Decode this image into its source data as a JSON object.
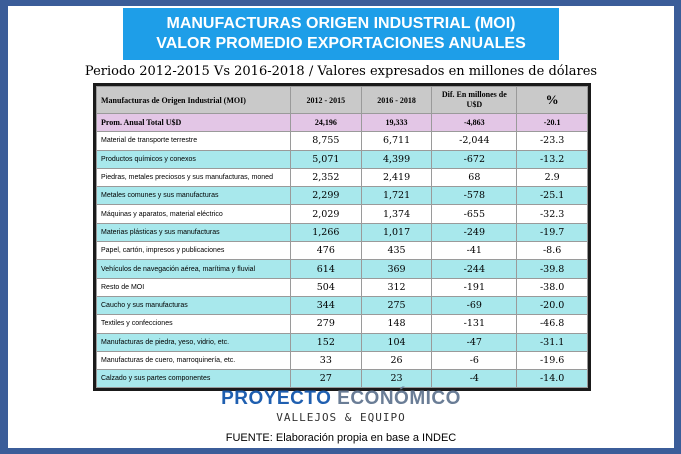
{
  "title": {
    "line1": "MANUFACTURAS ORIGEN INDUSTRIAL (MOI)",
    "line2": "VALOR PROMEDIO EXPORTACIONES ANUALES"
  },
  "subtitle": "Periodo 2012-2015 Vs 2016-2018 / Valores expresados en millones de dólares",
  "table": {
    "headers": [
      "Manufacturas de Origen Industrial (MOI)",
      "2012 - 2015",
      "2016 - 2018",
      "Dif. En millones de U$D",
      "%"
    ],
    "total": [
      "Prom. Anual Total U$D",
      "24,196",
      "19,333",
      "-4,863",
      "-20.1"
    ],
    "rows": [
      [
        "Material de transporte terrestre",
        "8,755",
        "6,711",
        "-2,044",
        "-23.3"
      ],
      [
        "Productos químicos y conexos",
        "5,071",
        "4,399",
        "-672",
        "-13.2"
      ],
      [
        "Piedras, metales preciosos y sus manufacturas, moned",
        "2,352",
        "2,419",
        "68",
        "2.9"
      ],
      [
        "Metales comunes y sus manufacturas",
        "2,299",
        "1,721",
        "-578",
        "-25.1"
      ],
      [
        "Máquinas y aparatos, material eléctrico",
        "2,029",
        "1,374",
        "-655",
        "-32.3"
      ],
      [
        "Materias plásticas y sus manufacturas",
        "1,266",
        "1,017",
        "-249",
        "-19.7"
      ],
      [
        "Papel, cartón, impresos y publicaciones",
        "476",
        "435",
        "-41",
        "-8.6"
      ],
      [
        "Vehículos de navegación aérea, marítima y fluvial",
        "614",
        "369",
        "-244",
        "-39.8"
      ],
      [
        "Resto de MOI",
        "504",
        "312",
        "-191",
        "-38.0"
      ],
      [
        "Caucho y sus manufacturas",
        "344",
        "275",
        "-69",
        "-20.0"
      ],
      [
        "Textiles y confecciones",
        "279",
        "148",
        "-131",
        "-46.8"
      ],
      [
        "Manufacturas de piedra, yeso, vidrio, etc.",
        "152",
        "104",
        "-47",
        "-31.1"
      ],
      [
        "Manufacturas de cuero, marroquinería, etc.",
        "33",
        "26",
        "-6",
        "-19.6"
      ],
      [
        "Calzado y sus partes componentes",
        "27",
        "23",
        "-4",
        "-14.0"
      ]
    ]
  },
  "logo": {
    "part1": "PROYECTO",
    "part2": "ECONÓMICO",
    "sub": "VALLEJOS & EQUIPO"
  },
  "source": "FUENTE: Elaboración propia en base a INDEC",
  "colors": {
    "background": "#3b5d99",
    "banner": "#1e9ee8",
    "header_row": "#c9c9c9",
    "total_row": "#e3c6e6",
    "alt_row": "#a8e8ec"
  }
}
